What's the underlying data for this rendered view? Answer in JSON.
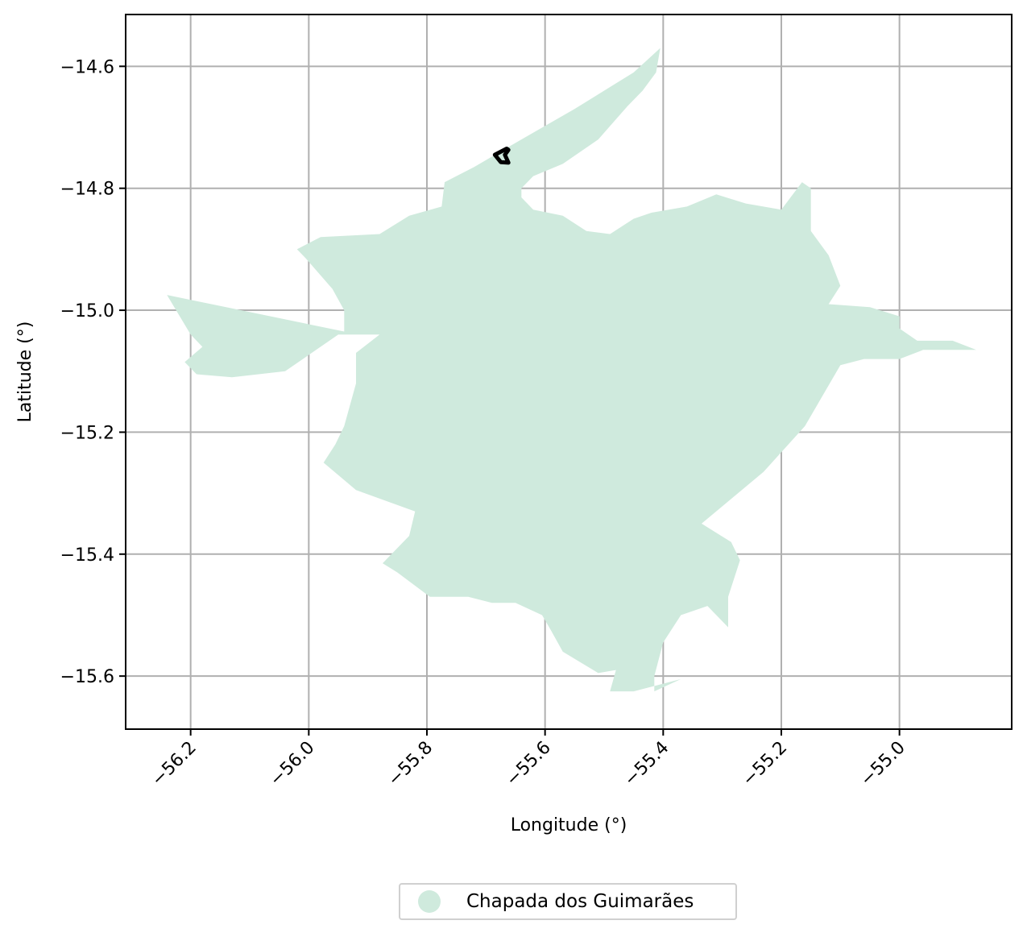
{
  "chart_data": {
    "type": "map",
    "xlabel": "Longitude (°)",
    "ylabel": "Latitude (°)",
    "xlim": [
      -56.31,
      -54.81
    ],
    "ylim": [
      -15.687,
      -14.515
    ],
    "xticks": [
      -56.2,
      -56.0,
      -55.8,
      -55.6,
      -55.4,
      -55.2,
      -55.0
    ],
    "yticks": [
      -14.6,
      -14.8,
      -15.0,
      -15.2,
      -15.4,
      -15.6
    ],
    "grid": true,
    "legend_position": "bottom-center",
    "legend": [
      {
        "label": "Chapada dos Guimarães",
        "color": "#cfeadd"
      }
    ],
    "region": {
      "name": "Chapada dos Guimarães",
      "fill": "#cfeadd",
      "outline": [
        [
          -55.405,
          -14.57
        ],
        [
          -55.412,
          -14.61
        ],
        [
          -55.435,
          -14.64
        ],
        [
          -55.46,
          -14.665
        ],
        [
          -55.51,
          -14.72
        ],
        [
          -55.57,
          -14.76
        ],
        [
          -55.62,
          -14.78
        ],
        [
          -55.64,
          -14.8
        ],
        [
          -55.64,
          -14.815
        ],
        [
          -55.62,
          -14.835
        ],
        [
          -55.57,
          -14.845
        ],
        [
          -55.53,
          -14.87
        ],
        [
          -55.49,
          -14.875
        ],
        [
          -55.45,
          -14.85
        ],
        [
          -55.42,
          -14.84
        ],
        [
          -55.36,
          -14.83
        ],
        [
          -55.31,
          -14.81
        ],
        [
          -55.26,
          -14.825
        ],
        [
          -55.2,
          -14.835
        ],
        [
          -55.165,
          -14.79
        ],
        [
          -55.15,
          -14.8
        ],
        [
          -55.15,
          -14.87
        ],
        [
          -55.12,
          -14.91
        ],
        [
          -55.1,
          -14.96
        ],
        [
          -55.12,
          -14.99
        ],
        [
          -55.05,
          -14.995
        ],
        [
          -55.0,
          -15.01
        ],
        [
          -55.0,
          -15.03
        ],
        [
          -54.97,
          -15.05
        ],
        [
          -54.91,
          -15.05
        ],
        [
          -54.87,
          -15.065
        ],
        [
          -54.96,
          -15.065
        ],
        [
          -55.0,
          -15.08
        ],
        [
          -55.06,
          -15.08
        ],
        [
          -55.1,
          -15.09
        ],
        [
          -55.16,
          -15.19
        ],
        [
          -55.23,
          -15.265
        ],
        [
          -55.335,
          -15.35
        ],
        [
          -55.285,
          -15.38
        ],
        [
          -55.27,
          -15.41
        ],
        [
          -55.29,
          -15.47
        ],
        [
          -55.29,
          -15.52
        ],
        [
          -55.325,
          -15.485
        ],
        [
          -55.37,
          -15.5
        ],
        [
          -55.4,
          -15.545
        ],
        [
          -55.415,
          -15.6
        ],
        [
          -55.415,
          -15.625
        ],
        [
          -55.37,
          -15.605
        ],
        [
          -55.45,
          -15.625
        ],
        [
          -55.49,
          -15.625
        ],
        [
          -55.48,
          -15.59
        ],
        [
          -55.51,
          -15.595
        ],
        [
          -55.57,
          -15.56
        ],
        [
          -55.59,
          -15.525
        ],
        [
          -55.605,
          -15.5
        ],
        [
          -55.65,
          -15.48
        ],
        [
          -55.69,
          -15.48
        ],
        [
          -55.73,
          -15.47
        ],
        [
          -55.795,
          -15.47
        ],
        [
          -55.85,
          -15.43
        ],
        [
          -55.875,
          -15.415
        ],
        [
          -55.83,
          -15.37
        ],
        [
          -55.82,
          -15.33
        ],
        [
          -55.92,
          -15.295
        ],
        [
          -55.975,
          -15.25
        ],
        [
          -55.955,
          -15.22
        ],
        [
          -55.94,
          -15.19
        ],
        [
          -55.92,
          -15.12
        ],
        [
          -55.92,
          -15.07
        ],
        [
          -55.88,
          -15.04
        ],
        [
          -55.95,
          -15.04
        ],
        [
          -56.04,
          -15.1
        ],
        [
          -56.13,
          -15.11
        ],
        [
          -56.19,
          -15.105
        ],
        [
          -56.21,
          -15.085
        ],
        [
          -56.18,
          -15.06
        ],
        [
          -56.2,
          -15.04
        ],
        [
          -56.24,
          -14.975
        ],
        [
          -55.94,
          -15.035
        ],
        [
          -55.94,
          -15.0
        ],
        [
          -55.96,
          -14.965
        ],
        [
          -56.005,
          -14.915
        ],
        [
          -56.02,
          -14.9
        ],
        [
          -55.98,
          -14.88
        ],
        [
          -55.88,
          -14.875
        ],
        [
          -55.83,
          -14.845
        ],
        [
          -55.775,
          -14.83
        ],
        [
          -55.77,
          -14.79
        ],
        [
          -55.72,
          -14.765
        ],
        [
          -55.64,
          -14.72
        ],
        [
          -55.55,
          -14.67
        ],
        [
          -55.45,
          -14.61
        ],
        [
          -55.405,
          -14.57
        ]
      ]
    },
    "marker_outline": [
      [
        -55.665,
        -14.735
      ],
      [
        -55.685,
        -14.745
      ],
      [
        -55.675,
        -14.757
      ],
      [
        -55.662,
        -14.758
      ],
      [
        -55.668,
        -14.745
      ],
      [
        -55.662,
        -14.737
      ]
    ]
  }
}
